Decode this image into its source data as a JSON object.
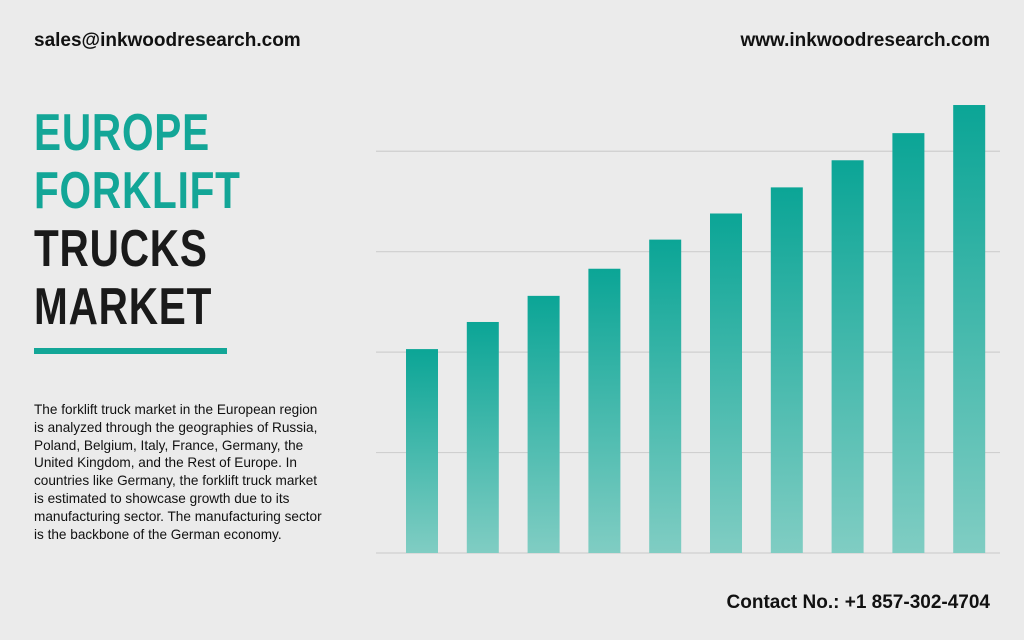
{
  "header": {
    "email": "sales@inkwoodresearch.com",
    "website": "www.inkwoodresearch.com"
  },
  "title_lines": [
    "EUROPE",
    "FORKLIFT",
    "TRUCKS",
    "MARKET"
  ],
  "description_lines": [
    "The forklift truck market in the European region",
    "is analyzed through the geographies of Russia,",
    "Poland, Belgium, Italy, France, Germany, the",
    "United Kingdom, and the Rest of Europe. In",
    "countries like Germany, the forklift truck market",
    "is estimated to showcase growth due to its",
    "manufacturing sector. The manufacturing sector",
    "is the backbone of the German economy."
  ],
  "footer": {
    "contact": "Contact No.: +1 857-302-4704"
  },
  "chart_data": {
    "type": "bar",
    "categories": [
      null,
      null,
      null,
      null,
      null,
      null,
      null,
      null,
      null,
      null
    ],
    "values": [
      2.03,
      2.3,
      2.56,
      2.83,
      3.12,
      3.38,
      3.64,
      3.91,
      4.18,
      4.46
    ],
    "color": "#0ba596",
    "ylim": [
      0,
      4.5
    ],
    "yticks": [
      0,
      1,
      2,
      3,
      4
    ],
    "grid": true
  }
}
